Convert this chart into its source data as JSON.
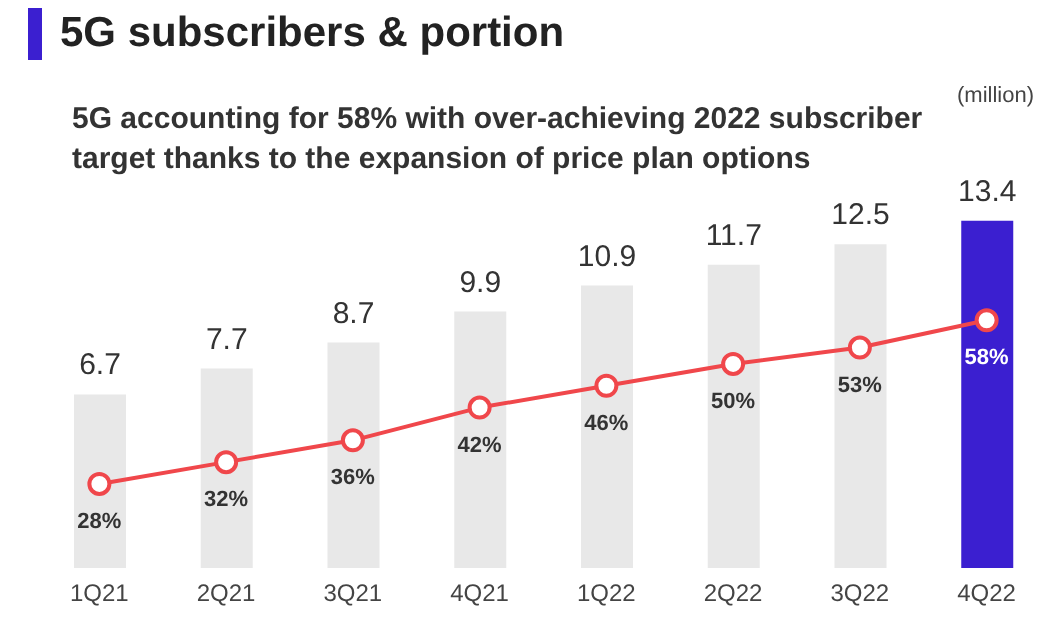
{
  "chart_data": {
    "type": "bar",
    "title": "5G subscribers & portion",
    "subtitle": "5G accounting for 58% with over-achieving 2022 subscriber target thanks to the expansion of price plan options",
    "annotations": [
      "(million)"
    ],
    "categories": [
      "1Q21",
      "2Q21",
      "3Q21",
      "4Q21",
      "1Q22",
      "2Q22",
      "3Q22",
      "4Q22"
    ],
    "series": [
      {
        "colors": [
          "#e8e8e8",
          "#e8e8e8",
          "#e8e8e8",
          "#e8e8e8",
          "#e8e8e8",
          "#e8e8e8",
          "#e8e8e8",
          "#3b1fd0"
        ],
        "values": [
          6.7,
          7.7,
          8.7,
          9.9,
          10.9,
          11.7,
          12.5,
          13.4
        ]
      },
      {
        "type": "line",
        "axis": "y2",
        "color": "#f0474b",
        "values": [
          28,
          32,
          36,
          42,
          46,
          50,
          53,
          58
        ],
        "value_labels": [
          "28%",
          "32%",
          "36%",
          "42%",
          "46%",
          "50%",
          "53%",
          "58%"
        ]
      }
    ],
    "data_labels": true,
    "tick_labels": "x",
    "grid": false,
    "legend": false,
    "marker": "circle",
    "line_style": "solid"
  }
}
